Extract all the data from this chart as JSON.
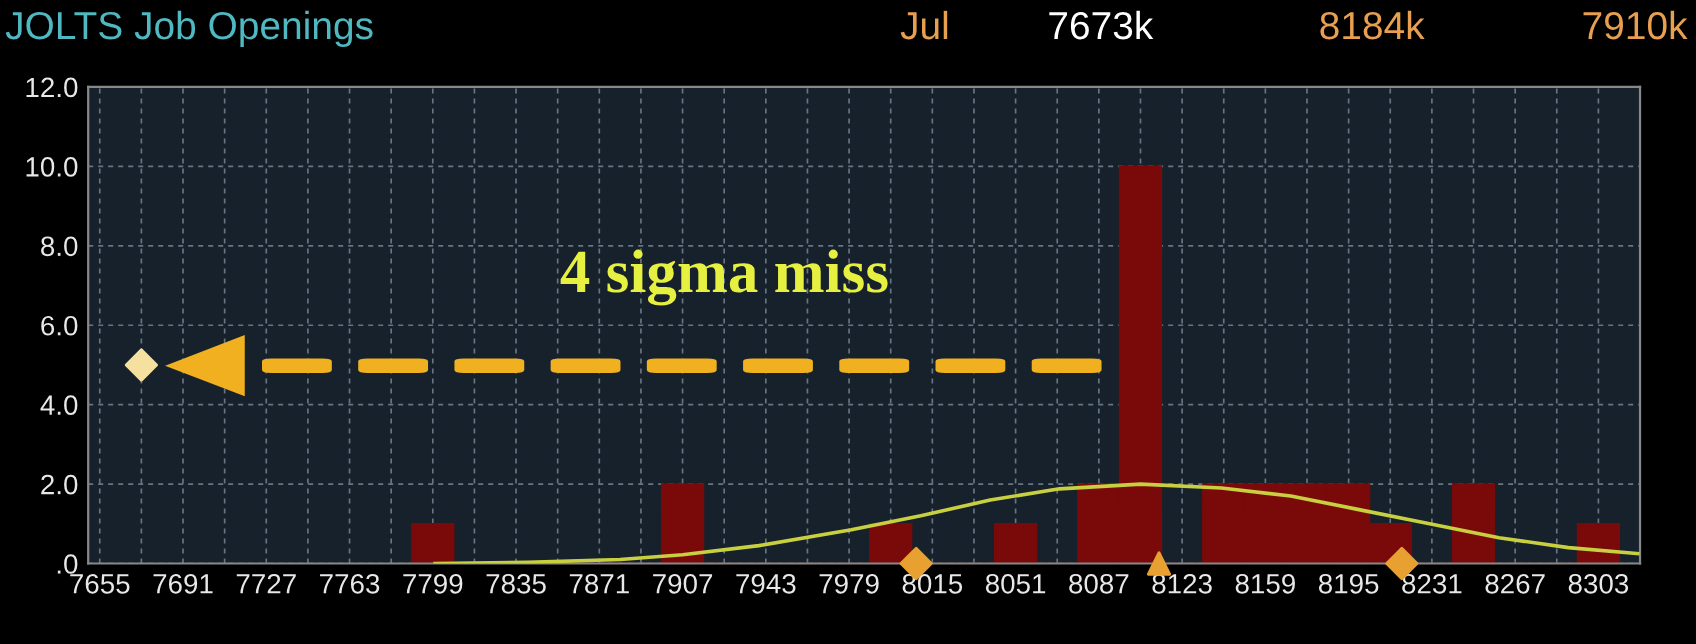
{
  "chart_data": {
    "type": "histogram",
    "title": "JOLTS Job Openings",
    "annotations": [
      "4 sigma miss",
      "Jul",
      "7673k",
      "8184k",
      "7910k"
    ],
    "series": [
      {
        "bins": [
          7790,
          7808,
          7826,
          7844,
          7862,
          7880,
          7898,
          7916,
          7934,
          7952,
          7970,
          7988,
          8006,
          8024,
          8042,
          8060,
          8078,
          8096,
          8114,
          8132,
          8150,
          8168,
          8186,
          8204,
          8222,
          8240,
          8258,
          8276,
          8294,
          8312
        ],
        "values": [
          1,
          0,
          0,
          0,
          0,
          0,
          2,
          0,
          0,
          0,
          0,
          1,
          0,
          0,
          1,
          0,
          2,
          10,
          0,
          2,
          2,
          2,
          2,
          1,
          0,
          2,
          0,
          0,
          1
        ],
        "color": "#7a0a0a"
      },
      {
        "type": "line",
        "x": [
          7800,
          7840,
          7880,
          7907,
          7940,
          7980,
          8010,
          8040,
          8070,
          8105,
          8140,
          8170,
          8200,
          8230,
          8260,
          8290,
          8320
        ],
        "values": [
          0.0,
          0.03,
          0.1,
          0.22,
          0.45,
          0.85,
          1.2,
          1.6,
          1.88,
          2.0,
          1.9,
          1.7,
          1.35,
          1.0,
          0.65,
          0.4,
          0.25
        ],
        "color": "#c8d040"
      },
      {
        "type": "scatter",
        "x": [
          8008,
          8218
        ],
        "values": [
          0,
          0
        ],
        "marker": "diamond",
        "color": "#e8a030"
      },
      {
        "type": "scatter",
        "x": [
          8113
        ],
        "values": [
          0
        ],
        "marker": "triangle",
        "color": "#e8a030"
      },
      {
        "type": "scatter",
        "x": [
          7673
        ],
        "values": [
          5
        ],
        "marker": "diamond",
        "color": "#f5e0a0"
      }
    ],
    "xlim": [
      7650,
      8321
    ],
    "xticks": [
      7655,
      {
        "value": 7673,
        "label": null
      },
      7691,
      {
        "value": 7709,
        "label": null
      },
      7727,
      {
        "value": 7745,
        "label": null
      },
      7763,
      {
        "value": 7781,
        "label": null
      },
      7799,
      {
        "value": 7817,
        "label": null
      },
      7835,
      {
        "value": 7853,
        "label": null
      },
      7871,
      {
        "value": 7889,
        "label": null
      },
      7907,
      {
        "value": 7925,
        "label": null
      },
      7943,
      {
        "value": 7961,
        "label": null
      },
      7979,
      {
        "value": 7997,
        "label": null
      },
      8015,
      {
        "value": 8033,
        "label": null
      },
      8051,
      {
        "value": 8069,
        "label": null
      },
      8087,
      {
        "value": 8105,
        "label": null
      },
      8123,
      {
        "value": 8141,
        "label": null
      },
      8159,
      {
        "value": 8177,
        "label": null
      },
      8195,
      {
        "value": 8213,
        "label": null
      },
      8231,
      {
        "value": 8249,
        "label": null
      },
      8267,
      {
        "value": 8285,
        "label": null
      },
      8303
    ],
    "ylim": [
      0,
      12
    ],
    "yticks": [
      {
        "value": 0,
        "label": ".0"
      },
      {
        "value": 2,
        "label": "2.0"
      },
      {
        "value": 4,
        "label": "4.0"
      },
      {
        "value": 6,
        "label": "6.0"
      },
      {
        "value": 8,
        "label": "8.0"
      },
      {
        "value": 10,
        "label": "10.0"
      },
      {
        "value": 12,
        "label": "12.0"
      }
    ],
    "grid": true,
    "legend": false
  }
}
